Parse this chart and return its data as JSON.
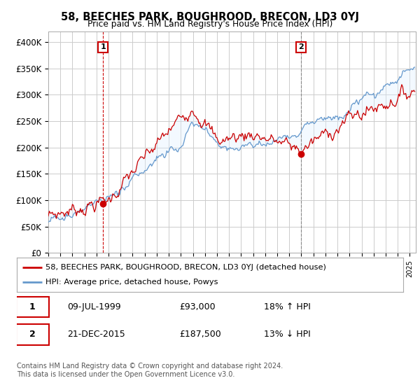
{
  "title": "58, BEECHES PARK, BOUGHROOD, BRECON, LD3 0YJ",
  "subtitle": "Price paid vs. HM Land Registry's House Price Index (HPI)",
  "ylim": [
    0,
    420000
  ],
  "yticks": [
    0,
    50000,
    100000,
    150000,
    200000,
    250000,
    300000,
    350000,
    400000
  ],
  "ytick_labels": [
    "£0",
    "£50K",
    "£100K",
    "£150K",
    "£200K",
    "£250K",
    "£300K",
    "£350K",
    "£400K"
  ],
  "red_color": "#cc0000",
  "blue_color": "#6699cc",
  "fill_color": "#ddeeff",
  "ann1_x": 1999.54,
  "ann1_y": 93000,
  "ann2_x": 2015.97,
  "ann2_y": 187500,
  "ann1_line_color": "#cc0000",
  "ann2_line_color": "#888888",
  "legend_line1": "58, BEECHES PARK, BOUGHROOD, BRECON, LD3 0YJ (detached house)",
  "legend_line2": "HPI: Average price, detached house, Powys",
  "table_row1_num": "1",
  "table_row1_date": "09-JUL-1999",
  "table_row1_price": "£93,000",
  "table_row1_hpi": "18% ↑ HPI",
  "table_row2_num": "2",
  "table_row2_date": "21-DEC-2015",
  "table_row2_price": "£187,500",
  "table_row2_hpi": "13% ↓ HPI",
  "footnote": "Contains HM Land Registry data © Crown copyright and database right 2024.\nThis data is licensed under the Open Government Licence v3.0.",
  "xmin": 1995.0,
  "xmax": 2025.5,
  "box_color": "#cc0000"
}
